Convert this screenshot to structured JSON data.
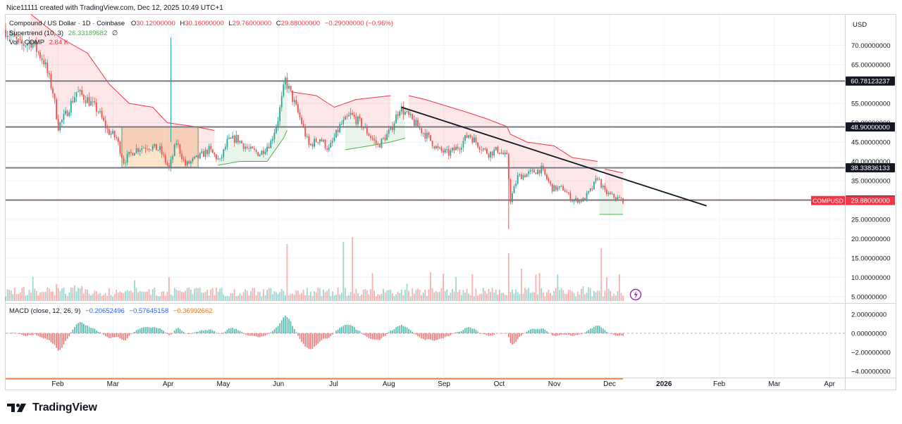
{
  "header": {
    "created_by": "Nice11111 created with TradingView.com, Dec 12, 2025 10:49 UTC+1",
    "symbol_title": "Compound / US Dollar · 1D · Coinbase",
    "ohlc": {
      "o_label": "O",
      "o": "30.12000000",
      "h_label": "H",
      "h": "30.16000000",
      "l_label": "L",
      "l": "29.76000000",
      "c_label": "C",
      "c": "29.88000000",
      "change": "−0.29000000 (−0.96%)"
    },
    "supertrend": {
      "label": "Supertrend (10, 3)",
      "value": "26.33189682",
      "extra": "∅"
    },
    "volume": {
      "label": "Vol · COMP",
      "value": "2.84 K"
    }
  },
  "currency": "USD",
  "price_axis_ticks": [
    "70.00000000",
    "65.00000000",
    "55.00000000",
    "50.00000000",
    "45.00000000",
    "40.00000000",
    "35.00000000",
    "25.00000000",
    "20.00000000",
    "15.00000000",
    "10.00000000",
    "5.00000000"
  ],
  "horizontal_levels": [
    {
      "value": 60.78123237,
      "label": "60.78123237"
    },
    {
      "value": 48.9,
      "label": "48.90000000"
    },
    {
      "value": 38.33836133,
      "label": "38.33836133"
    },
    {
      "value": 30.0,
      "label": "30.00000000"
    }
  ],
  "last_price": {
    "symbol": "COMPUSD",
    "value": "29.88000000",
    "color": "#f23645"
  },
  "time_axis": [
    "Feb",
    "Mar",
    "Apr",
    "May",
    "Jun",
    "Jul",
    "Aug",
    "Sep",
    "Oct",
    "Nov",
    "Dec",
    "2026",
    "Feb",
    "Mar",
    "Apr"
  ],
  "macd": {
    "label": "MACD (close, 12, 26, 9)",
    "values": [
      "−0.20652496",
      "−0.57645158",
      "−0.36992662"
    ],
    "value_colors": [
      "#2962ff",
      "#2962ff",
      "#ff6d00"
    ],
    "axis_ticks": [
      "2.00000000",
      "0.00000000",
      "−2.00000000",
      "−4.00000000"
    ]
  },
  "footer": {
    "brand": "TradingView"
  },
  "colors": {
    "up": "#26a69a",
    "down": "#ef5350",
    "supertrend_up": "#4caf50",
    "supertrend_down": "#f23645",
    "trendline": "#131722",
    "level_line": "#787b86",
    "macd_line": "#2962ff",
    "signal_line": "#ff6d00"
  },
  "chart_data": {
    "type": "candlestick",
    "title": "Compound / US Dollar · 1D · Coinbase",
    "ylim": [
      0,
      75
    ],
    "grid": true,
    "price_path": [
      [
        "2025-01-06",
        74
      ],
      [
        "2025-01-14",
        70
      ],
      [
        "2025-01-20",
        71
      ],
      [
        "2025-01-27",
        66
      ],
      [
        "2025-02-01",
        58
      ],
      [
        "2025-02-04",
        49
      ],
      [
        "2025-02-08",
        52
      ],
      [
        "2025-02-14",
        58
      ],
      [
        "2025-02-20",
        56
      ],
      [
        "2025-02-26",
        53
      ],
      [
        "2025-03-03",
        48
      ],
      [
        "2025-03-08",
        46
      ],
      [
        "2025-03-12",
        40
      ],
      [
        "2025-03-18",
        43
      ],
      [
        "2025-03-25",
        44
      ],
      [
        "2025-04-01",
        43
      ],
      [
        "2025-04-06",
        38
      ],
      [
        "2025-04-10",
        45
      ],
      [
        "2025-04-15",
        39
      ],
      [
        "2025-04-22",
        41
      ],
      [
        "2025-04-28",
        43
      ],
      [
        "2025-05-04",
        40
      ],
      [
        "2025-05-08",
        45
      ],
      [
        "2025-05-13",
        46
      ],
      [
        "2025-05-20",
        43
      ],
      [
        "2025-05-26",
        42
      ],
      [
        "2025-06-01",
        45
      ],
      [
        "2025-06-05",
        51
      ],
      [
        "2025-06-09",
        61
      ],
      [
        "2025-06-14",
        55
      ],
      [
        "2025-06-18",
        50
      ],
      [
        "2025-06-22",
        44
      ],
      [
        "2025-06-28",
        46
      ],
      [
        "2025-07-03",
        43
      ],
      [
        "2025-07-09",
        49
      ],
      [
        "2025-07-15",
        52
      ],
      [
        "2025-07-20",
        50
      ],
      [
        "2025-07-25",
        47
      ],
      [
        "2025-07-30",
        44
      ],
      [
        "2025-08-06",
        48
      ],
      [
        "2025-08-11",
        54
      ],
      [
        "2025-08-15",
        52
      ],
      [
        "2025-08-21",
        49
      ],
      [
        "2025-08-27",
        46
      ],
      [
        "2025-09-01",
        43
      ],
      [
        "2025-09-07",
        42
      ],
      [
        "2025-09-13",
        44
      ],
      [
        "2025-09-18",
        47
      ],
      [
        "2025-09-24",
        44
      ],
      [
        "2025-09-29",
        42
      ],
      [
        "2025-10-04",
        43
      ],
      [
        "2025-10-09",
        41
      ],
      [
        "2025-10-11",
        30
      ],
      [
        "2025-10-15",
        36
      ],
      [
        "2025-10-22",
        37
      ],
      [
        "2025-10-28",
        38
      ],
      [
        "2025-11-03",
        33
      ],
      [
        "2025-11-09",
        33
      ],
      [
        "2025-11-14",
        30
      ],
      [
        "2025-11-20",
        30
      ],
      [
        "2025-11-25",
        33
      ],
      [
        "2025-11-28",
        36
      ],
      [
        "2025-12-02",
        32
      ],
      [
        "2025-12-06",
        31
      ],
      [
        "2025-12-12",
        29.88
      ]
    ],
    "trendline": {
      "from": [
        "2025-08-12",
        54
      ],
      "to": [
        "2026-01-27",
        28.5
      ]
    },
    "shaded_ranges": [
      {
        "from": "2025-03-11",
        "to": "2025-04-22",
        "low": 38.5,
        "high": 48.9,
        "color": "#f5c38a"
      }
    ],
    "supertrend": {
      "down_segments": [
        [
          [
            "2025-01-20",
            78
          ],
          [
            "2025-02-05",
            72
          ],
          [
            "2025-02-20",
            68
          ],
          [
            "2025-03-04",
            60
          ],
          [
            "2025-03-15",
            55
          ],
          [
            "2025-03-28",
            54
          ],
          [
            "2025-04-05",
            50
          ],
          [
            "2025-04-20",
            49
          ],
          [
            "2025-05-01",
            48
          ]
        ],
        [
          [
            "2025-06-12",
            58
          ],
          [
            "2025-06-26",
            57
          ],
          [
            "2025-07-06",
            54
          ],
          [
            "2025-07-18",
            56
          ],
          [
            "2025-08-06",
            57
          ]
        ],
        [
          [
            "2025-08-16",
            57
          ],
          [
            "2025-08-25",
            56
          ],
          [
            "2025-09-15",
            53
          ],
          [
            "2025-09-28",
            51
          ],
          [
            "2025-10-09",
            49
          ],
          [
            "2025-10-11",
            47
          ],
          [
            "2025-10-20",
            45
          ],
          [
            "2025-11-04",
            44
          ],
          [
            "2025-11-14",
            41
          ],
          [
            "2025-11-28",
            40
          ]
        ],
        [
          [
            "2025-12-02",
            38
          ],
          [
            "2025-12-12",
            37
          ]
        ]
      ],
      "up_segments": [
        [
          [
            "2025-05-03",
            39
          ],
          [
            "2025-05-15",
            40
          ],
          [
            "2025-05-30",
            40
          ],
          [
            "2025-06-08",
            46
          ],
          [
            "2025-06-10",
            48
          ]
        ],
        [
          [
            "2025-07-12",
            43
          ],
          [
            "2025-07-25",
            44
          ],
          [
            "2025-08-06",
            45
          ],
          [
            "2025-08-14",
            46
          ]
        ],
        [
          [
            "2025-11-29",
            26.3
          ],
          [
            "2025-12-12",
            26.3
          ]
        ]
      ]
    },
    "volume_scale_note": "relative units 0-1",
    "macd_ylim": [
      -4.8,
      2.6
    ]
  }
}
